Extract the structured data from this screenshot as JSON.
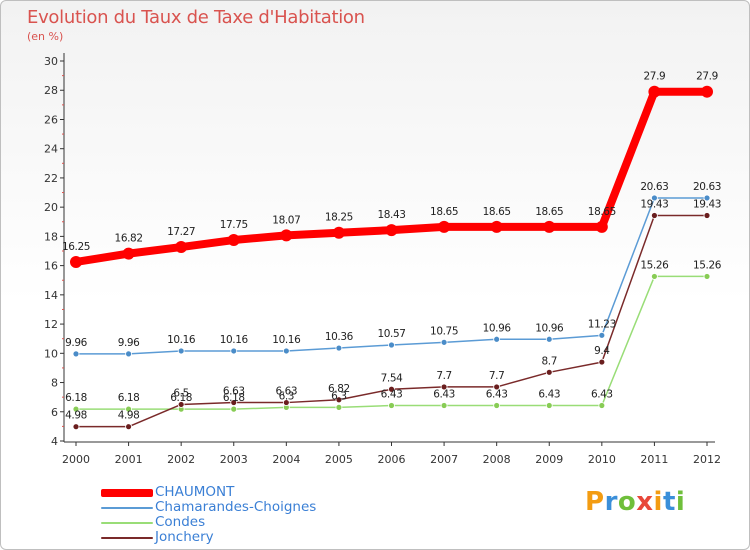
{
  "header": {
    "title": "Evolution du Taux de Taxe d'Habitation",
    "unit": "(en %)"
  },
  "brand": {
    "text": "Proxiti",
    "colors": [
      "#f39c12",
      "#3a8fd9",
      "#6fbf3b",
      "#e8473a",
      "#f39c12",
      "#3a8fd9",
      "#6fbf3b"
    ]
  },
  "chart_data": {
    "type": "line",
    "title": "Evolution du Taux de Taxe d'Habitation",
    "ylabel": "(en %)",
    "xlabel": "",
    "x": [
      "2000",
      "2001",
      "2002",
      "2003",
      "2004",
      "2005",
      "2006",
      "2007",
      "2008",
      "2009",
      "2010",
      "2011",
      "2012"
    ],
    "ylim": [
      4,
      30
    ],
    "yticks": [
      "4",
      "6",
      "8",
      "10",
      "12",
      "14",
      "16",
      "18",
      "20",
      "22",
      "24",
      "26",
      "28",
      "30"
    ],
    "grid": false,
    "legend": "bottom-left",
    "series": [
      {
        "name": "CHAUMONT",
        "color": "#ff0000",
        "values": [
          16.25,
          16.82,
          17.27,
          17.75,
          18.07,
          18.25,
          18.43,
          18.65,
          18.65,
          18.65,
          18.65,
          27.9,
          27.9
        ],
        "labels": [
          "16.25",
          "16.82",
          "17.27",
          "17.75",
          "18.07",
          "18.25",
          "18.43",
          "18.65",
          "18.65",
          "18.65",
          "18.65",
          "27.9",
          "27.9"
        ]
      },
      {
        "name": "Chamarandes-Choignes",
        "color": "#5b9bd5",
        "values": [
          9.96,
          9.96,
          10.16,
          10.16,
          10.16,
          10.36,
          10.57,
          10.75,
          10.96,
          10.96,
          11.23,
          20.63,
          20.63
        ],
        "labels": [
          "9.96",
          "9.96",
          "10.16",
          "10.16",
          "10.16",
          "10.36",
          "10.57",
          "10.75",
          "10.96",
          "10.96",
          "11.23",
          "20.63",
          "20.63"
        ]
      },
      {
        "name": "Condes",
        "color": "#99dd77",
        "values": [
          6.18,
          6.18,
          6.18,
          6.18,
          6.3,
          6.3,
          6.43,
          6.43,
          6.43,
          6.43,
          6.43,
          15.26,
          15.26
        ],
        "labels": [
          "6.18",
          "6.18",
          "6.18",
          "6.18",
          "6.3",
          "6.3",
          "6.43",
          "6.43",
          "6.43",
          "6.43",
          "6.43",
          "15.26",
          "15.26"
        ]
      },
      {
        "name": "Jonchery",
        "color": "#7a2a2a",
        "values": [
          4.98,
          4.98,
          6.5,
          6.63,
          6.63,
          6.82,
          7.54,
          7.7,
          7.7,
          8.7,
          9.4,
          19.43,
          19.43
        ],
        "labels": [
          "4.98",
          "4.98",
          "6.5",
          "6.63",
          "6.63",
          "6.82",
          "7.54",
          "7.7",
          "7.7",
          "8.7",
          "9.4",
          "19.43",
          "19.43"
        ]
      }
    ]
  }
}
